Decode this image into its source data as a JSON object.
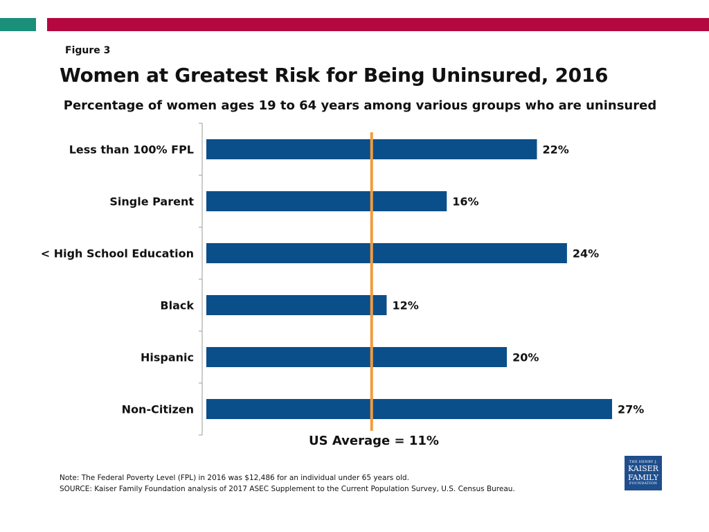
{
  "colors": {
    "teal": "#1a8f7a",
    "brand_red": "#b4083f",
    "bar": "#0b4f8a",
    "average_line": "#f39b3c",
    "logo_bg": "#1f4e8c"
  },
  "figure_label": "Figure 3",
  "title": "Women at Greatest Risk for Being Uninsured, 2016",
  "subtitle": "Percentage of women ages 19 to 64 years among various groups who are uninsured",
  "chart_data": {
    "type": "bar",
    "orientation": "horizontal",
    "categories": [
      "Less than 100% FPL",
      "Single Parent",
      "< High School Education",
      "Black",
      "Hispanic",
      "Non-Citizen"
    ],
    "values": [
      22,
      16,
      24,
      12,
      20,
      27
    ],
    "value_labels": [
      "22%",
      "16%",
      "24%",
      "12%",
      "20%",
      "27%"
    ],
    "xlim": [
      0,
      27
    ],
    "reference_line": {
      "value": 11,
      "label": "US Average = 11%"
    },
    "grid": false,
    "legend": "none"
  },
  "note": "Note: The Federal Poverty Level (FPL) in 2016 was $12,486 for an individual under 65 years old.",
  "source": "SOURCE:  Kaiser Family Foundation analysis of 2017 ASEC Supplement to the Current Population Survey, U.S. Census Bureau.",
  "logo": {
    "line1": "THE HENRY J.",
    "line2": "KAISER",
    "line3": "FAMILY",
    "line4": "FOUNDATION"
  }
}
